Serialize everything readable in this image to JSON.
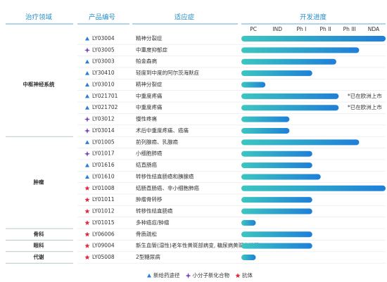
{
  "header": {
    "area": "治疗领域",
    "code": "产品编号",
    "indication": "适应症",
    "progress": "开发进度"
  },
  "phases": [
    "PC",
    "IND",
    "Ph I",
    "Ph II",
    "Ph III",
    "NDA"
  ],
  "progress_range": [
    0,
    6
  ],
  "areas": [
    {
      "label": "中枢神经系统",
      "products": [
        {
          "icon": "triangle",
          "code": "LY03004",
          "indication": "精神分裂症",
          "progress": 6
        },
        {
          "icon": "plus",
          "code": "LY03005",
          "indication": "中重度抑郁症",
          "progress": 4.9
        },
        {
          "icon": "triangle",
          "code": "LY03003",
          "indication": "帕金森病",
          "progress": 3.95
        },
        {
          "icon": "triangle",
          "code": "LY30410",
          "indication": "轻度到中度的阿尔茨海默症",
          "progress": 2.95
        },
        {
          "icon": "triangle",
          "code": "LY03010",
          "indication": "精神分裂症",
          "progress": 1
        },
        {
          "icon": "triangle",
          "code": "LY021701",
          "indication": "中重度疼痛",
          "progress": 4.05,
          "note": "*已在欧洲上市"
        },
        {
          "icon": "triangle",
          "code": "LY021702",
          "indication": "中重度疼痛",
          "progress": 4.05,
          "note": "*已在欧洲上市"
        },
        {
          "icon": "plus",
          "code": "LY03012",
          "indication": "慢性疼痛",
          "progress": 2
        },
        {
          "icon": "plus",
          "code": "LY03014",
          "indication": "术后中重度疼痛、癌痛",
          "progress": 2
        }
      ]
    },
    {
      "label": "肿瘤",
      "products": [
        {
          "icon": "triangle",
          "code": "LY01005",
          "indication": "前列腺癌、乳腺癌",
          "progress": 4.9
        },
        {
          "icon": "plus",
          "code": "LY01017",
          "indication": "小细胞肺癌",
          "progress": 2.95
        },
        {
          "icon": "triangle",
          "code": "LY01616",
          "indication": "结直肠癌",
          "progress": 2.95
        },
        {
          "icon": "triangle",
          "code": "LY01610",
          "indication": "转移性结直肠癌和胰腺癌",
          "progress": 3.3
        },
        {
          "icon": "star",
          "code": "LY01008",
          "indication": "结肠直肠癌、非小细胞肺癌",
          "progress": 6
        },
        {
          "icon": "star",
          "code": "LY01011",
          "indication": "肿瘤骨转移",
          "progress": 2.95
        },
        {
          "icon": "star",
          "code": "LY01012",
          "indication": "转移性结直肠癌",
          "progress": 2.95
        },
        {
          "icon": "star",
          "code": "LY01015",
          "indication": "多种癌症/肿瘤",
          "progress": 0.6
        }
      ]
    },
    {
      "label": "骨科",
      "products": [
        {
          "icon": "star",
          "code": "LY06006",
          "indication": "骨质疏松",
          "progress": 2.95
        }
      ]
    },
    {
      "label": "眼科",
      "products": [
        {
          "icon": "star",
          "code": "LY09004",
          "indication": "新生血管(湿性)老年性黄斑部病变, 糖尿病黄斑水肿等",
          "progress": 2.95
        }
      ]
    },
    {
      "label": "代谢",
      "products": [
        {
          "icon": "star",
          "code": "LY05008",
          "indication": "2型糖尿病",
          "progress": 0.6
        }
      ]
    }
  ],
  "legend": [
    {
      "icon": "triangle",
      "label": "新给药途径"
    },
    {
      "icon": "plus",
      "label": "小分子新化合物"
    },
    {
      "icon": "star",
      "label": "抗体"
    }
  ],
  "icon_colors": {
    "triangle": "#2a7fd4",
    "plus": "#7b3fbf",
    "star": "#e0283a"
  }
}
